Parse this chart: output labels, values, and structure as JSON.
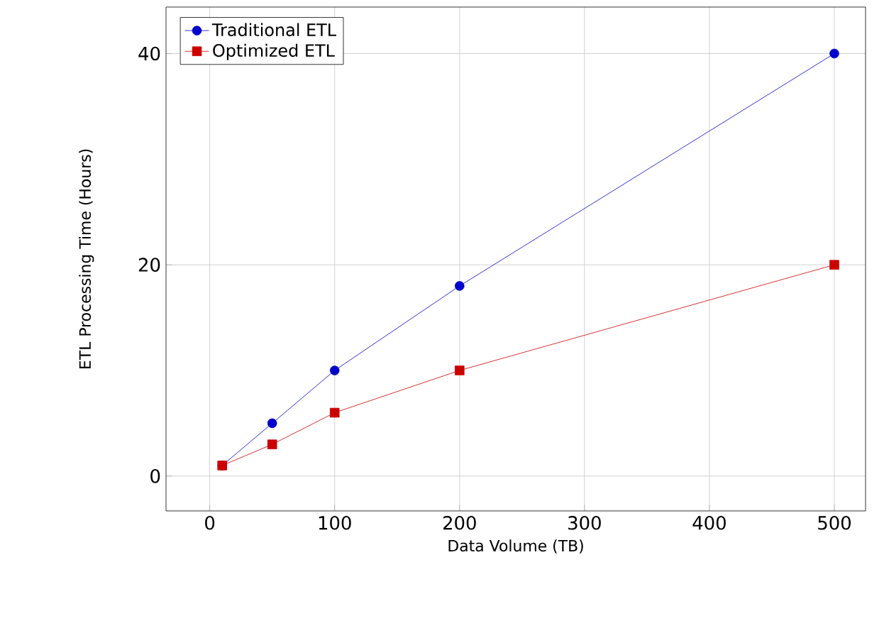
{
  "chart_data": {
    "type": "line",
    "xlabel": "Data Volume (TB)",
    "ylabel": "ETL Processing Time (Hours)",
    "series": [
      {
        "name": "Traditional ETL",
        "color": "#0000cc",
        "marker": "circle",
        "x": [
          10,
          50,
          100,
          200,
          500
        ],
        "values": [
          1,
          5,
          10,
          18,
          40
        ]
      },
      {
        "name": "Optimized ETL",
        "color": "#cc0000",
        "marker": "square",
        "x": [
          10,
          50,
          100,
          200,
          500
        ],
        "values": [
          1,
          3,
          6,
          10,
          20
        ]
      }
    ],
    "xlim": [
      -35,
      525
    ],
    "ylim": [
      -3.3,
      44.4
    ],
    "xticks": [
      0,
      100,
      200,
      300,
      400,
      500
    ],
    "yticks": [
      0,
      20,
      40
    ],
    "grid": true,
    "legend": "top left"
  }
}
